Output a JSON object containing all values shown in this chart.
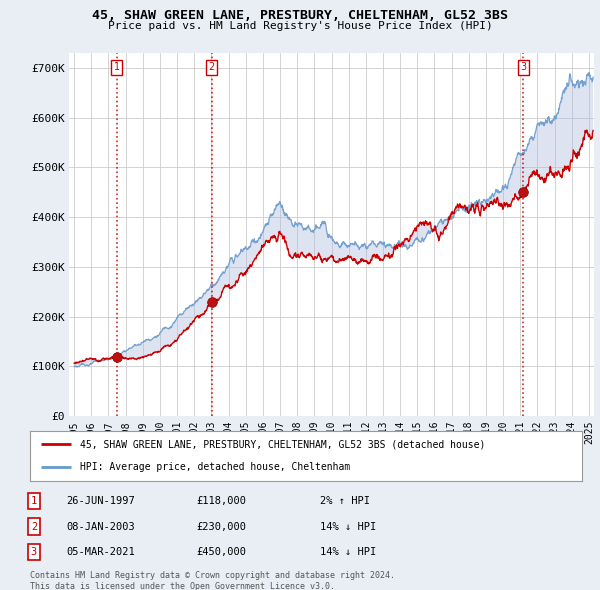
{
  "title": "45, SHAW GREEN LANE, PRESTBURY, CHELTENHAM, GL52 3BS",
  "subtitle": "Price paid vs. HM Land Registry's House Price Index (HPI)",
  "legend_property": "45, SHAW GREEN LANE, PRESTBURY, CHELTENHAM, GL52 3BS (detached house)",
  "legend_hpi": "HPI: Average price, detached house, Cheltenham",
  "footer": "Contains HM Land Registry data © Crown copyright and database right 2024.\nThis data is licensed under the Open Government Licence v3.0.",
  "purchases": [
    {
      "num": 1,
      "date": "26-JUN-1997",
      "price": 118000,
      "hpi_diff": "2% ↑ HPI",
      "year": 1997.49
    },
    {
      "num": 2,
      "date": "08-JAN-2003",
      "price": 230000,
      "hpi_diff": "14% ↓ HPI",
      "year": 2003.02
    },
    {
      "num": 3,
      "date": "05-MAR-2021",
      "price": 450000,
      "hpi_diff": "14% ↓ HPI",
      "year": 2021.18
    }
  ],
  "property_color": "#cc0000",
  "hpi_color": "#6699cc",
  "fill_color": "#aabbdd",
  "dashed_color": "#cc0000",
  "ylim": [
    0,
    730000
  ],
  "xlim_start": 1994.7,
  "xlim_end": 2025.3,
  "yticks": [
    0,
    100000,
    200000,
    300000,
    400000,
    500000,
    600000,
    700000
  ],
  "ytick_labels": [
    "£0",
    "£100K",
    "£200K",
    "£300K",
    "£400K",
    "£500K",
    "£600K",
    "£700K"
  ],
  "xticks": [
    1995,
    1996,
    1997,
    1998,
    1999,
    2000,
    2001,
    2002,
    2003,
    2004,
    2005,
    2006,
    2007,
    2008,
    2009,
    2010,
    2011,
    2012,
    2013,
    2014,
    2015,
    2016,
    2017,
    2018,
    2019,
    2020,
    2021,
    2022,
    2023,
    2024,
    2025
  ],
  "bg_color": "#e8eef4",
  "plot_bg_color": "#ffffff",
  "grid_color": "#cccccc"
}
